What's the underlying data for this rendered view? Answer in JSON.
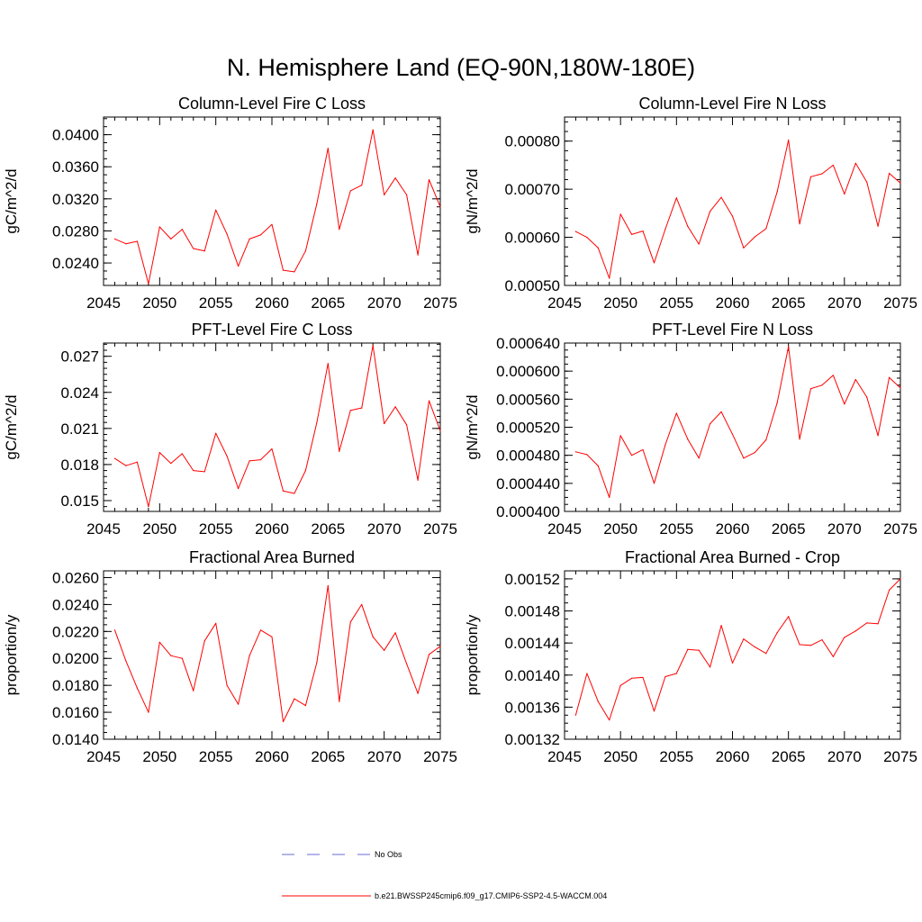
{
  "page_title": "N. Hemisphere Land (EQ-90N,180W-180E)",
  "legend": [
    {
      "label": "No Obs",
      "color": "#6a6ad8",
      "dash": true
    },
    {
      "label": "b.e21.BWSSP245cmip6.f09_g17.CMIP6-SSP2-4.5-WACCM.004",
      "color": "#ff0000",
      "dash": false
    }
  ],
  "chart_data": [
    {
      "type": "line",
      "title": "Column-Level Fire C Loss",
      "ylabel": "gC/m^2/d",
      "xlim": [
        2045,
        2075
      ],
      "ylim": [
        0.0212,
        0.0422
      ],
      "xticks": [
        2045,
        2050,
        2055,
        2060,
        2065,
        2070,
        2075
      ],
      "yticks": [
        0.024,
        0.028,
        0.032,
        0.036,
        0.04
      ],
      "ytick_labels": [
        "0.0240",
        "0.0280",
        "0.0320",
        "0.0360",
        "0.0400"
      ],
      "yminor": 0.001,
      "series": [
        {
          "color": "#ff0000",
          "x": [
            2046,
            2047,
            2048,
            2049,
            2050,
            2051,
            2052,
            2053,
            2054,
            2055,
            2056,
            2057,
            2058,
            2059,
            2060,
            2061,
            2062,
            2063,
            2064,
            2065,
            2066,
            2067,
            2068,
            2069,
            2070,
            2071,
            2072,
            2073,
            2074,
            2075
          ],
          "values": [
            0.027,
            0.0264,
            0.0267,
            0.0214,
            0.0285,
            0.027,
            0.0282,
            0.0258,
            0.0255,
            0.0306,
            0.0276,
            0.0236,
            0.027,
            0.0275,
            0.0288,
            0.0231,
            0.0229,
            0.0255,
            0.0314,
            0.0383,
            0.0282,
            0.033,
            0.0337,
            0.0406,
            0.0325,
            0.0346,
            0.0325,
            0.025,
            0.0344,
            0.031
          ]
        }
      ]
    },
    {
      "type": "line",
      "title": "Column-Level Fire N Loss",
      "ylabel": "gN/m^2/d",
      "xlim": [
        2045,
        2075
      ],
      "ylim": [
        0.0005,
        0.00085
      ],
      "xticks": [
        2045,
        2050,
        2055,
        2060,
        2065,
        2070,
        2075
      ],
      "yticks": [
        0.0005,
        0.0006,
        0.0007,
        0.0008
      ],
      "ytick_labels": [
        "0.00050",
        "0.00060",
        "0.00070",
        "0.00080"
      ],
      "yminor": 2e-05,
      "series": [
        {
          "color": "#ff0000",
          "x": [
            2046,
            2047,
            2048,
            2049,
            2050,
            2051,
            2052,
            2053,
            2054,
            2055,
            2056,
            2057,
            2058,
            2059,
            2060,
            2061,
            2062,
            2063,
            2064,
            2065,
            2066,
            2067,
            2068,
            2069,
            2070,
            2071,
            2072,
            2073,
            2074,
            2075
          ],
          "values": [
            0.000612,
            0.0006,
            0.000578,
            0.000515,
            0.000648,
            0.000606,
            0.000613,
            0.000547,
            0.000617,
            0.000682,
            0.000623,
            0.000586,
            0.000654,
            0.000683,
            0.000644,
            0.000578,
            0.000601,
            0.000618,
            0.000695,
            0.000802,
            0.000628,
            0.000726,
            0.000732,
            0.00075,
            0.00069,
            0.000754,
            0.000715,
            0.000623,
            0.000733,
            0.000713
          ]
        }
      ]
    },
    {
      "type": "line",
      "title": "PFT-Level Fire C Loss",
      "ylabel": "gC/m^2/d",
      "xlim": [
        2045,
        2075
      ],
      "ylim": [
        0.0141,
        0.0281
      ],
      "xticks": [
        2045,
        2050,
        2055,
        2060,
        2065,
        2070,
        2075
      ],
      "yticks": [
        0.015,
        0.018,
        0.021,
        0.024,
        0.027
      ],
      "ytick_labels": [
        "0.015",
        "0.018",
        "0.021",
        "0.024",
        "0.027"
      ],
      "yminor": 0.0005,
      "series": [
        {
          "color": "#ff0000",
          "x": [
            2046,
            2047,
            2048,
            2049,
            2050,
            2051,
            2052,
            2053,
            2054,
            2055,
            2056,
            2057,
            2058,
            2059,
            2060,
            2061,
            2062,
            2063,
            2064,
            2065,
            2066,
            2067,
            2068,
            2069,
            2070,
            2071,
            2072,
            2073,
            2074,
            2075
          ],
          "values": [
            0.0185,
            0.0179,
            0.0182,
            0.0145,
            0.019,
            0.0181,
            0.0189,
            0.0175,
            0.0174,
            0.0206,
            0.0187,
            0.016,
            0.0183,
            0.0184,
            0.0193,
            0.0158,
            0.0156,
            0.0175,
            0.0215,
            0.0264,
            0.0191,
            0.0225,
            0.0227,
            0.0279,
            0.0214,
            0.0228,
            0.0213,
            0.0167,
            0.0233,
            0.0208
          ]
        }
      ]
    },
    {
      "type": "line",
      "title": "PFT-Level Fire N Loss",
      "ylabel": "gN/m^2/d",
      "xlim": [
        2045,
        2075
      ],
      "ylim": [
        0.0004,
        0.00064
      ],
      "xticks": [
        2045,
        2050,
        2055,
        2060,
        2065,
        2070,
        2075
      ],
      "yticks": [
        0.0004,
        0.00044,
        0.00048,
        0.00052,
        0.00056,
        0.0006,
        0.00064
      ],
      "ytick_labels": [
        "0.000400",
        "0.000440",
        "0.000480",
        "0.000520",
        "0.000560",
        "0.000600",
        "0.000640"
      ],
      "yminor": 1e-05,
      "series": [
        {
          "color": "#ff0000",
          "x": [
            2046,
            2047,
            2048,
            2049,
            2050,
            2051,
            2052,
            2053,
            2054,
            2055,
            2056,
            2057,
            2058,
            2059,
            2060,
            2061,
            2062,
            2063,
            2064,
            2065,
            2066,
            2067,
            2068,
            2069,
            2070,
            2071,
            2072,
            2073,
            2074,
            2075
          ],
          "values": [
            0.000485,
            0.000481,
            0.000465,
            0.00042,
            0.000508,
            0.00048,
            0.000488,
            0.00044,
            0.000495,
            0.00054,
            0.000503,
            0.000476,
            0.000525,
            0.000542,
            0.00051,
            0.000476,
            0.000484,
            0.000502,
            0.000555,
            0.000635,
            0.000503,
            0.000575,
            0.00058,
            0.000594,
            0.000553,
            0.000588,
            0.000563,
            0.000508,
            0.000591,
            0.000576
          ]
        }
      ]
    },
    {
      "type": "line",
      "title": "Fractional Area Burned",
      "ylabel": "proportion/y",
      "xlim": [
        2045,
        2075
      ],
      "ylim": [
        0.014,
        0.0265
      ],
      "xticks": [
        2045,
        2050,
        2055,
        2060,
        2065,
        2070,
        2075
      ],
      "yticks": [
        0.014,
        0.016,
        0.018,
        0.02,
        0.022,
        0.024,
        0.026
      ],
      "ytick_labels": [
        "0.0140",
        "0.0160",
        "0.0180",
        "0.0200",
        "0.0220",
        "0.0240",
        "0.0260"
      ],
      "yminor": 0.0005,
      "series": [
        {
          "color": "#ff0000",
          "x": [
            2046,
            2047,
            2048,
            2049,
            2050,
            2051,
            2052,
            2053,
            2054,
            2055,
            2056,
            2057,
            2058,
            2059,
            2060,
            2061,
            2062,
            2063,
            2064,
            2065,
            2066,
            2067,
            2068,
            2069,
            2070,
            2071,
            2072,
            2073,
            2074,
            2075
          ],
          "values": [
            0.0221,
            0.0198,
            0.0178,
            0.016,
            0.0212,
            0.0202,
            0.02,
            0.0176,
            0.0213,
            0.0226,
            0.018,
            0.0166,
            0.0202,
            0.0221,
            0.0216,
            0.0153,
            0.017,
            0.0165,
            0.0197,
            0.0254,
            0.0168,
            0.0227,
            0.024,
            0.0216,
            0.0206,
            0.0219,
            0.0196,
            0.0174,
            0.0203,
            0.0209
          ]
        }
      ]
    },
    {
      "type": "line",
      "title": "Fractional Area Burned - Crop",
      "ylabel": "proportion/y",
      "xlim": [
        2045,
        2075
      ],
      "ylim": [
        0.00132,
        0.00153
      ],
      "xticks": [
        2045,
        2050,
        2055,
        2060,
        2065,
        2070,
        2075
      ],
      "yticks": [
        0.00132,
        0.00136,
        0.0014,
        0.00144,
        0.00148,
        0.00152
      ],
      "ytick_labels": [
        "0.00132",
        "0.00136",
        "0.00140",
        "0.00144",
        "0.00148",
        "0.00152"
      ],
      "yminor": 1e-05,
      "series": [
        {
          "color": "#ff0000",
          "x": [
            2046,
            2047,
            2048,
            2049,
            2050,
            2051,
            2052,
            2053,
            2054,
            2055,
            2056,
            2057,
            2058,
            2059,
            2060,
            2061,
            2062,
            2063,
            2064,
            2065,
            2066,
            2067,
            2068,
            2069,
            2070,
            2071,
            2072,
            2073,
            2074,
            2075
          ],
          "values": [
            0.00135,
            0.001402,
            0.001367,
            0.001344,
            0.001387,
            0.001396,
            0.001397,
            0.001355,
            0.001398,
            0.001402,
            0.001432,
            0.001431,
            0.00141,
            0.001462,
            0.001415,
            0.001445,
            0.001435,
            0.001427,
            0.001453,
            0.001473,
            0.001438,
            0.001437,
            0.001444,
            0.001423,
            0.001447,
            0.001455,
            0.001465,
            0.001464,
            0.001506,
            0.00152
          ]
        }
      ]
    }
  ]
}
